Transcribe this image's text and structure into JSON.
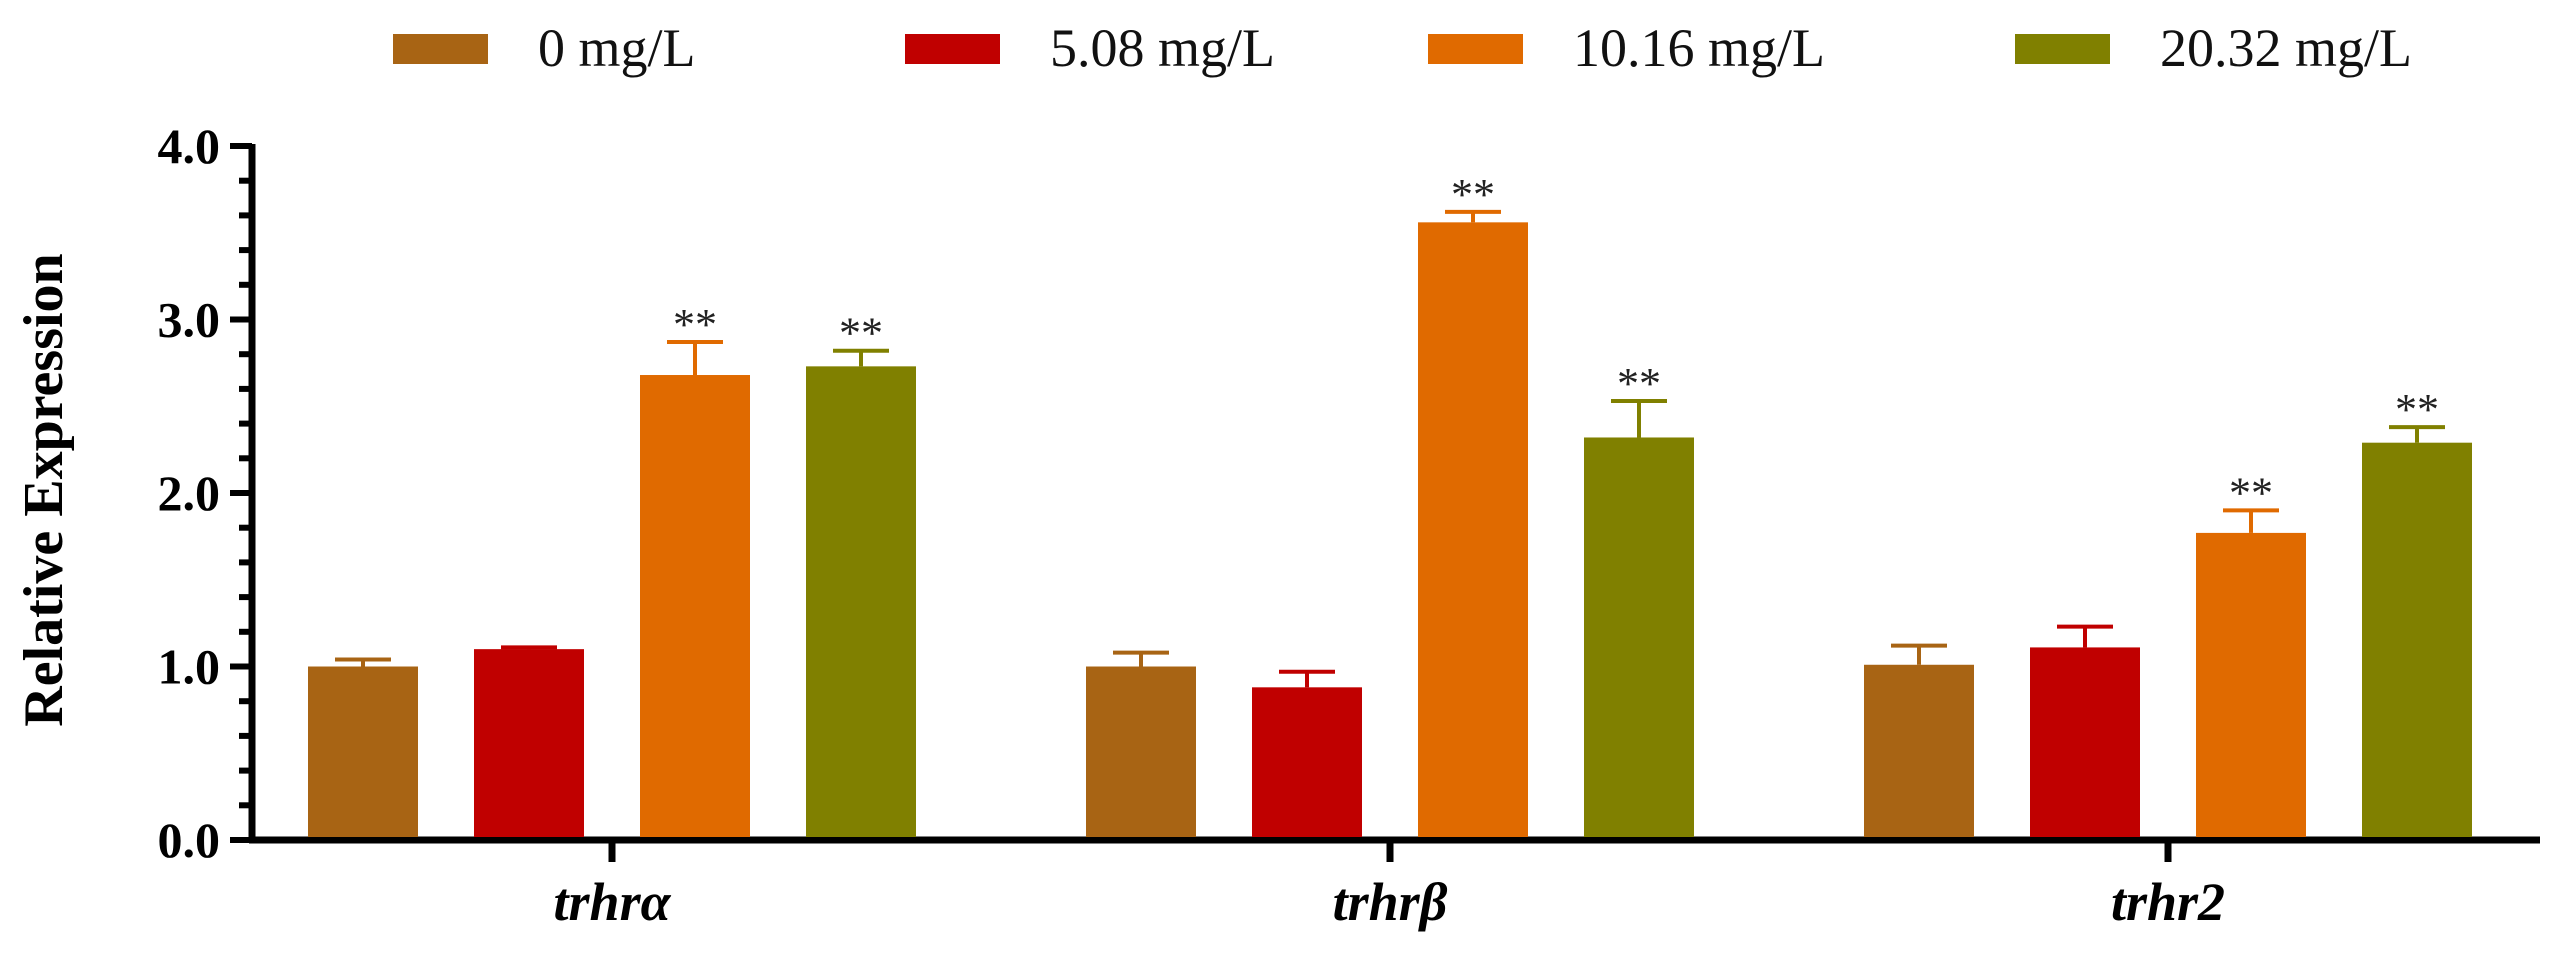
{
  "chart_data": {
    "type": "bar",
    "title": "",
    "xlabel": "",
    "ylabel": "Relative Expression",
    "ylim": [
      0,
      4
    ],
    "yticks": [
      "0.0",
      "1.0",
      "2.0",
      "3.0",
      "4.0"
    ],
    "grid": false,
    "legend_position": "top",
    "categories": [
      "trhrα",
      "trhrβ",
      "trhr2"
    ],
    "series": [
      {
        "name": "0 mg/L",
        "color": "#A86414",
        "values": [
          1.0,
          1.0,
          1.01
        ],
        "errors": [
          0.04,
          0.08,
          0.11
        ],
        "significance": [
          "",
          "",
          ""
        ]
      },
      {
        "name": "5.08 mg/L",
        "color": "#C00000",
        "values": [
          1.1,
          0.88,
          1.11
        ],
        "errors": [
          0.01,
          0.09,
          0.12
        ],
        "significance": [
          "",
          "",
          ""
        ]
      },
      {
        "name": "10.16 mg/L",
        "color": "#E06A00",
        "values": [
          2.68,
          3.56,
          1.77
        ],
        "errors": [
          0.19,
          0.06,
          0.13
        ],
        "significance": [
          "**",
          "**",
          "**"
        ]
      },
      {
        "name": "20.32 mg/L",
        "color": "#808000",
        "values": [
          2.73,
          2.32,
          2.29
        ],
        "errors": [
          0.09,
          0.21,
          0.09
        ],
        "significance": [
          "**",
          "**",
          "**"
        ]
      }
    ]
  }
}
